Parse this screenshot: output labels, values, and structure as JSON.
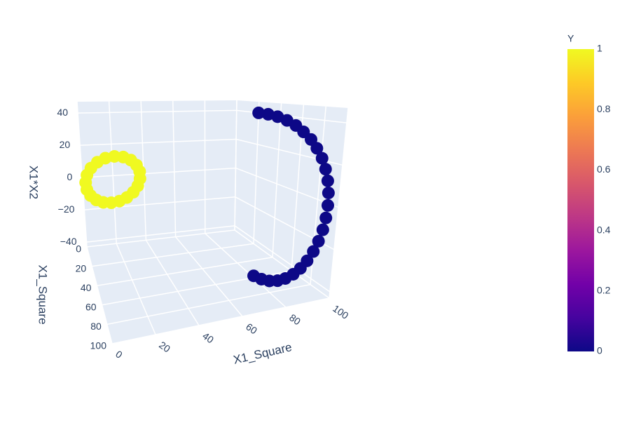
{
  "chart_data": {
    "type": "scatter3d",
    "xaxis_title": "X1_Square",
    "yaxis_title": "X1_Square",
    "zaxis_title": "X1*X2",
    "xlim": [
      0,
      100
    ],
    "ylim": [
      0,
      100
    ],
    "zlim": [
      -43,
      47
    ],
    "xticks": [
      0,
      20,
      40,
      60,
      80,
      100
    ],
    "yticks": [
      0,
      20,
      40,
      60,
      80,
      100
    ],
    "zticks": [
      {
        "value": -40,
        "label": "−40"
      },
      {
        "value": -20,
        "label": "−20"
      },
      0,
      20,
      40
    ],
    "grid": true,
    "series": [
      {
        "color": "#f0f921",
        "x": [
          35,
          34.2,
          31.8,
          28,
          23.3,
          18,
          12.7,
          8,
          4.2,
          1.8,
          1,
          1.8,
          4.2,
          8,
          12.7,
          18,
          23.3,
          28,
          31.8,
          34.2
        ],
        "y": [
          8,
          10.5,
          12.7,
          14.5,
          15.6,
          16,
          15.6,
          14.5,
          12.7,
          10.5,
          8,
          5.5,
          3.3,
          1.5,
          0.4,
          0,
          0.4,
          1.5,
          3.3,
          5.5
        ],
        "z": [
          0,
          5.3,
          10,
          13.8,
          16.2,
          17,
          16.2,
          13.8,
          10,
          5.3,
          0,
          -5.3,
          -10,
          -13.8,
          -16.2,
          -17,
          -16.2,
          -13.8,
          -10,
          -5.3
        ]
      },
      {
        "color": "#0d0887",
        "x": [
          80,
          81.4,
          82.9,
          84.6,
          86.3,
          88.2,
          90,
          91.8,
          93.7,
          95.4,
          97.1,
          98.6,
          100,
          101.2,
          102.3,
          103.1,
          103.7,
          103.9,
          104.1,
          103.9,
          103.7,
          103.1,
          102.2,
          101.2,
          100
        ],
        "y": [
          60,
          66.3,
          72.2,
          77.6,
          82.3,
          86.3,
          89.5,
          91.9,
          93.3,
          93.9,
          93.5,
          92.2,
          90,
          87,
          83.1,
          78.5,
          73.3,
          67.5,
          61.3,
          54.5,
          47.7,
          40.6,
          33.6,
          26.7,
          20
        ],
        "z": [
          -42,
          -41.6,
          -40.6,
          -38.9,
          -36.5,
          -33.5,
          -30,
          -26,
          -21.5,
          -16.7,
          -11.6,
          -6.4,
          -1,
          4.4,
          9.6,
          14.7,
          19.5,
          24,
          28,
          31.5,
          34.5,
          36.9,
          38.6,
          39.6,
          40
        ]
      }
    ],
    "colorbar": {
      "title": "Y",
      "clim": [
        0,
        1
      ],
      "ticks": [
        0,
        0.2,
        0.4,
        0.6,
        0.8,
        1
      ],
      "colors": [
        "#0d0887",
        "#46039f",
        "#7201a8",
        "#9c179e",
        "#bd3786",
        "#d8576b",
        "#ed7953",
        "#fb9f3a",
        "#fdca26",
        "#f0f921"
      ]
    }
  }
}
